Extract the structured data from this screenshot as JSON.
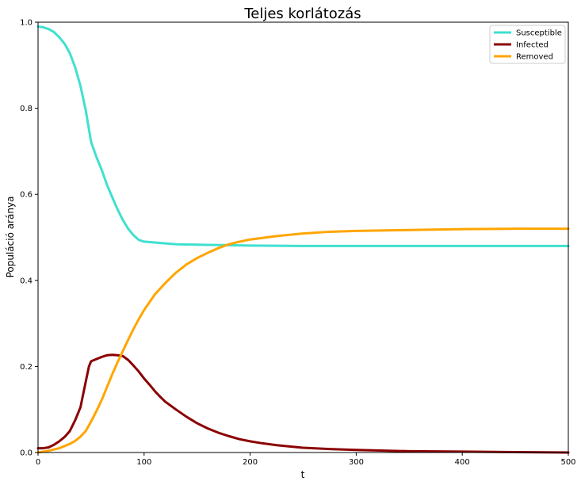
{
  "chart_data": {
    "type": "line",
    "title": "Teljes korlátozás",
    "xlabel": "t",
    "ylabel": "Populáció aránya",
    "xlim": [
      0,
      500
    ],
    "ylim": [
      0.0,
      1.0
    ],
    "xticks": [
      0,
      100,
      200,
      300,
      400,
      500
    ],
    "xtick_labels": [
      "0",
      "100",
      "200",
      "300",
      "400",
      "500"
    ],
    "yticks": [
      0.0,
      0.2,
      0.4,
      0.6,
      0.8,
      1.0
    ],
    "ytick_labels": [
      "0.0",
      "0.2",
      "0.4",
      "0.6",
      "0.8",
      "1.0"
    ],
    "grid": false,
    "legend_position": "top-right",
    "series": [
      {
        "name": "Susceptible",
        "color": "#40e0d0",
        "points": [
          [
            0,
            0.99
          ],
          [
            5,
            0.988
          ],
          [
            10,
            0.984
          ],
          [
            15,
            0.977
          ],
          [
            20,
            0.965
          ],
          [
            25,
            0.95
          ],
          [
            30,
            0.928
          ],
          [
            35,
            0.895
          ],
          [
            40,
            0.852
          ],
          [
            45,
            0.795
          ],
          [
            50,
            0.722
          ],
          [
            55,
            0.687
          ],
          [
            60,
            0.657
          ],
          [
            65,
            0.622
          ],
          [
            70,
            0.593
          ],
          [
            75,
            0.565
          ],
          [
            80,
            0.54
          ],
          [
            85,
            0.52
          ],
          [
            90,
            0.505
          ],
          [
            95,
            0.494
          ],
          [
            100,
            0.49
          ],
          [
            110,
            0.488
          ],
          [
            120,
            0.486
          ],
          [
            130,
            0.484
          ],
          [
            150,
            0.483
          ],
          [
            175,
            0.482
          ],
          [
            200,
            0.481
          ],
          [
            250,
            0.48
          ],
          [
            300,
            0.48
          ],
          [
            400,
            0.48
          ],
          [
            500,
            0.48
          ]
        ]
      },
      {
        "name": "Infected",
        "color": "#8b0000",
        "points": [
          [
            0,
            0.01
          ],
          [
            5,
            0.01
          ],
          [
            10,
            0.012
          ],
          [
            15,
            0.018
          ],
          [
            20,
            0.026
          ],
          [
            25,
            0.036
          ],
          [
            30,
            0.05
          ],
          [
            35,
            0.075
          ],
          [
            40,
            0.105
          ],
          [
            45,
            0.165
          ],
          [
            48,
            0.2
          ],
          [
            50,
            0.212
          ],
          [
            55,
            0.217
          ],
          [
            60,
            0.222
          ],
          [
            65,
            0.226
          ],
          [
            70,
            0.227
          ],
          [
            75,
            0.226
          ],
          [
            80,
            0.224
          ],
          [
            85,
            0.215
          ],
          [
            90,
            0.202
          ],
          [
            95,
            0.188
          ],
          [
            100,
            0.172
          ],
          [
            105,
            0.158
          ],
          [
            110,
            0.143
          ],
          [
            115,
            0.13
          ],
          [
            120,
            0.118
          ],
          [
            130,
            0.1
          ],
          [
            140,
            0.083
          ],
          [
            150,
            0.068
          ],
          [
            160,
            0.056
          ],
          [
            170,
            0.046
          ],
          [
            180,
            0.038
          ],
          [
            190,
            0.031
          ],
          [
            200,
            0.026
          ],
          [
            210,
            0.022
          ],
          [
            225,
            0.017
          ],
          [
            250,
            0.011
          ],
          [
            275,
            0.008
          ],
          [
            300,
            0.006
          ],
          [
            350,
            0.003
          ],
          [
            400,
            0.002
          ],
          [
            450,
            0.001
          ],
          [
            500,
            0.0
          ]
        ]
      },
      {
        "name": "Removed",
        "color": "#ffa500",
        "points": [
          [
            0,
            0.0
          ],
          [
            10,
            0.004
          ],
          [
            20,
            0.01
          ],
          [
            30,
            0.02
          ],
          [
            35,
            0.027
          ],
          [
            40,
            0.037
          ],
          [
            45,
            0.05
          ],
          [
            50,
            0.072
          ],
          [
            55,
            0.096
          ],
          [
            60,
            0.122
          ],
          [
            65,
            0.152
          ],
          [
            70,
            0.182
          ],
          [
            75,
            0.21
          ],
          [
            80,
            0.236
          ],
          [
            85,
            0.262
          ],
          [
            90,
            0.287
          ],
          [
            95,
            0.31
          ],
          [
            100,
            0.331
          ],
          [
            110,
            0.367
          ],
          [
            120,
            0.394
          ],
          [
            130,
            0.418
          ],
          [
            140,
            0.437
          ],
          [
            150,
            0.452
          ],
          [
            160,
            0.464
          ],
          [
            170,
            0.475
          ],
          [
            180,
            0.484
          ],
          [
            190,
            0.49
          ],
          [
            200,
            0.495
          ],
          [
            225,
            0.503
          ],
          [
            250,
            0.509
          ],
          [
            275,
            0.513
          ],
          [
            300,
            0.515
          ],
          [
            350,
            0.517
          ],
          [
            400,
            0.519
          ],
          [
            450,
            0.52
          ],
          [
            500,
            0.52
          ]
        ]
      }
    ]
  }
}
